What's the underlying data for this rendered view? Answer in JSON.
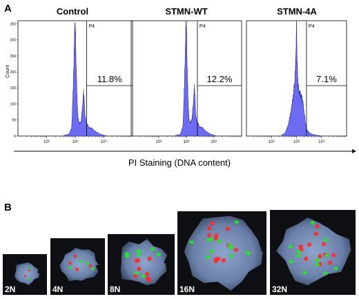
{
  "panels": {
    "a_letter": "A",
    "b_letter": "B"
  },
  "colors": {
    "histogram_fill": "#6b6cf2",
    "histogram_edge": "#2a2ab0",
    "cell_nucleus": "#7d93b8",
    "cell_background": "#0e0f12",
    "probe_red": "#ff2a2a",
    "probe_green": "#22e52a",
    "label_text": "#ffffff"
  },
  "x_axis_label": "PI Staining (DNA content)",
  "chart_data": [
    {
      "type": "area",
      "title": "Control",
      "ylabel": "Count",
      "x_scale": "log",
      "xlim": [
        10,
        100000
      ],
      "x_ticks": [
        100,
        1000,
        10000
      ],
      "x_tick_labels": [
        "10²",
        "10³",
        "10⁴"
      ],
      "ylim": [
        0,
        360
      ],
      "y_ticks": [
        0,
        50,
        100,
        150,
        200,
        250,
        300,
        350
      ],
      "y_tick_labels": [
        "0",
        "50",
        "100",
        "150",
        "200",
        "250",
        "300",
        "350"
      ],
      "gate": {
        "name": "P4",
        "x_start": 2500,
        "percent": "11.8%"
      },
      "x": [
        400,
        600,
        750,
        850,
        950,
        1000,
        1050,
        1150,
        1250,
        1400,
        1600,
        1800,
        1950,
        2050,
        2200,
        2500,
        3000,
        4000,
        5500,
        8000,
        12000
      ],
      "values": [
        2,
        6,
        25,
        150,
        320,
        345,
        260,
        120,
        55,
        38,
        45,
        95,
        135,
        110,
        60,
        38,
        28,
        22,
        12,
        5,
        1
      ]
    },
    {
      "type": "area",
      "title": "STMN-WT",
      "x_scale": "log",
      "xlim": [
        10,
        100000
      ],
      "x_ticks": [
        100,
        1000,
        10000
      ],
      "x_tick_labels": [
        "10²",
        "10³",
        "10⁴"
      ],
      "ylim": [
        0,
        360
      ],
      "gate": {
        "name": "P4",
        "x_start": 2500,
        "percent": "12.2%"
      },
      "x": [
        400,
        600,
        750,
        850,
        950,
        1000,
        1050,
        1150,
        1250,
        1400,
        1600,
        1800,
        1950,
        2050,
        2200,
        2500,
        3000,
        4000,
        5500,
        8000,
        12000
      ],
      "values": [
        2,
        5,
        30,
        160,
        330,
        350,
        250,
        110,
        50,
        40,
        55,
        110,
        150,
        115,
        60,
        42,
        30,
        24,
        12,
        5,
        1
      ]
    },
    {
      "type": "area",
      "title": "STMN-4A",
      "x_scale": "log",
      "xlim": [
        10,
        100000
      ],
      "x_ticks": [
        100,
        1000,
        10000
      ],
      "x_tick_labels": [
        "10²",
        "10³",
        "10⁴"
      ],
      "ylim": [
        0,
        360
      ],
      "gate": {
        "name": "P4",
        "x_start": 2500,
        "percent": "7.1%"
      },
      "x": [
        250,
        350,
        450,
        550,
        650,
        750,
        850,
        950,
        1000,
        1050,
        1150,
        1250,
        1400,
        1600,
        1800,
        2000,
        2300,
        2600,
        3200,
        4500,
        7000,
        12000
      ],
      "values": [
        2,
        10,
        30,
        60,
        95,
        130,
        170,
        250,
        360,
        240,
        160,
        140,
        130,
        120,
        105,
        75,
        40,
        20,
        10,
        5,
        2,
        0
      ]
    }
  ],
  "cells": [
    {
      "label": "2N",
      "red_dots": 2,
      "green_dots": 2
    },
    {
      "label": "4N",
      "red_dots": 4,
      "green_dots": 4
    },
    {
      "label": "8N",
      "red_dots": 8,
      "green_dots": 8
    },
    {
      "label": "16N",
      "red_dots": 16,
      "green_dots": 16
    },
    {
      "label": "32N",
      "red_dots": 32,
      "green_dots": 32
    }
  ]
}
